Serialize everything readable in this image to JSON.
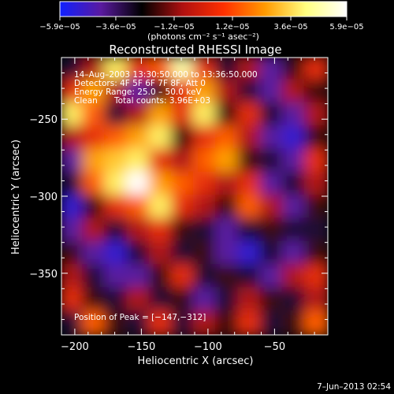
{
  "chart_data": {
    "type": "heatmap",
    "title": "Reconstructed RHESSI Image",
    "xlabel": "Heliocentric X (arcsec)",
    "ylabel": "Heliocentric Y (arcsec)",
    "xlim": [
      -210,
      -10
    ],
    "ylim": [
      -390,
      -210
    ],
    "x_ticks": [
      -200,
      -150,
      -100,
      -50
    ],
    "x_tick_labels": [
      "−200",
      "−150",
      "−100",
      "−50"
    ],
    "y_ticks": [
      -250,
      -300,
      -350
    ],
    "y_tick_labels": [
      "−250",
      "−300",
      "−350"
    ],
    "colorbar": {
      "range": [
        -5.9e-05,
        5.9e-05
      ],
      "ticks": [
        -5.9e-05,
        -3.6e-05,
        -1.2e-05,
        1.2e-05,
        3.6e-05,
        5.9e-05
      ],
      "tick_labels": [
        "−5.9e−05",
        "−3.6e−05",
        "−1.2e−05",
        "1.2e−05",
        "3.6e−05",
        "5.9e−05"
      ],
      "unit_label": "(photons cm⁻² s⁻¹ asec⁻²)",
      "colors": [
        "#1020ff",
        "#5a1aa0",
        "#000000",
        "#b01010",
        "#ff3000",
        "#ff9a00",
        "#ffff80",
        "#ffffff"
      ]
    },
    "annotations": {
      "time": "14–Aug–2003 13:30:50.000 to 13:36:50.000",
      "detectors": "Detectors: 4F 5F 6F 7F 8F, Att 0",
      "energy": "Energy Range: 25.0 – 50.0 keV",
      "clean": "Clean",
      "counts": "Total counts: 3.96E+03",
      "peak": "Position of Peak = [−147,−312]"
    },
    "peak": {
      "x": -147,
      "y": -312
    },
    "intensity_grid": [
      [
        0.3,
        0.5,
        0.9,
        0.6,
        0.7,
        0.95,
        0.6,
        0.3,
        0.5,
        0.2,
        0.4,
        0.6
      ],
      [
        0.6,
        0.8,
        0.5,
        0.2,
        0.4,
        0.6,
        0.8,
        0.5,
        0.3,
        0.2,
        0.5,
        0.4
      ],
      [
        0.9,
        0.7,
        0.3,
        0.5,
        0.8,
        0.6,
        0.9,
        0.4,
        0.6,
        0.3,
        0.2,
        0.5
      ],
      [
        0.5,
        0.6,
        0.7,
        0.8,
        0.9,
        0.4,
        0.6,
        0.7,
        0.5,
        0.2,
        0.1,
        0.4
      ],
      [
        0.2,
        0.8,
        0.85,
        0.9,
        0.6,
        0.5,
        0.7,
        0.8,
        0.4,
        0.3,
        0.2,
        0.6
      ],
      [
        0.3,
        0.7,
        0.9,
        1.0,
        0.8,
        0.7,
        0.6,
        0.5,
        0.6,
        0.2,
        0.3,
        0.5
      ],
      [
        0.1,
        0.4,
        0.6,
        0.7,
        0.9,
        0.6,
        0.5,
        0.4,
        0.7,
        0.5,
        0.2,
        0.4
      ],
      [
        0.2,
        0.5,
        0.3,
        0.5,
        0.6,
        0.4,
        0.3,
        0.2,
        0.3,
        0.4,
        0.3,
        0.3
      ],
      [
        0.4,
        0.2,
        0.1,
        0.3,
        0.5,
        0.3,
        0.4,
        0.2,
        0.1,
        0.3,
        0.2,
        0.4
      ],
      [
        0.5,
        0.3,
        0.2,
        0.2,
        0.4,
        0.6,
        0.3,
        0.4,
        0.3,
        0.2,
        0.5,
        0.6
      ],
      [
        0.6,
        0.4,
        0.3,
        0.5,
        0.3,
        0.4,
        0.2,
        0.3,
        0.5,
        0.4,
        0.3,
        0.5
      ],
      [
        0.3,
        0.7,
        0.4,
        0.3,
        0.6,
        0.3,
        0.5,
        0.4,
        0.6,
        0.3,
        0.4,
        0.7
      ]
    ]
  },
  "footer": {
    "date": "7–Jun–2013 02:54"
  }
}
